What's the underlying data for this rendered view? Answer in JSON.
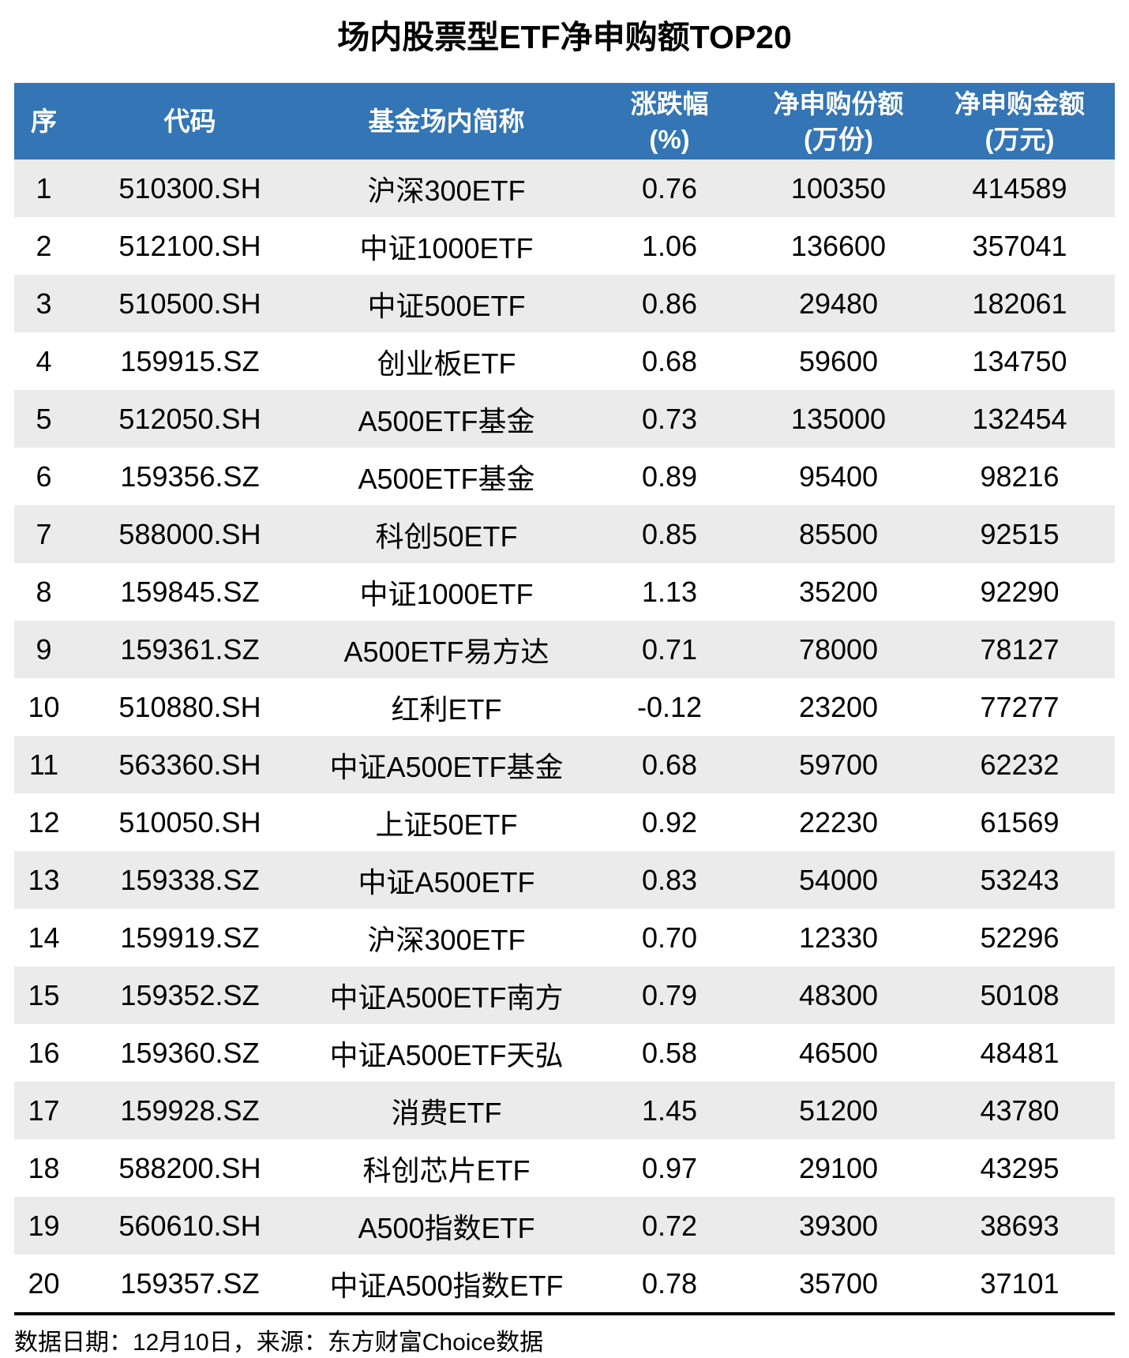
{
  "title": "场内股票型ETF净申购额TOP20",
  "colors": {
    "header_bg": "#3375B5",
    "header_text": "#FFFFFF",
    "row_alt_bg": "#EBEBEB",
    "divider": "#000000"
  },
  "table": {
    "columns": [
      {
        "name": "seq",
        "label": "序",
        "sub": ""
      },
      {
        "name": "code",
        "label": "代码",
        "sub": ""
      },
      {
        "name": "fund-name",
        "label": "基金场内简称",
        "sub": ""
      },
      {
        "name": "change-pct",
        "label": "涨跌幅",
        "sub": "(%)"
      },
      {
        "name": "net-shares",
        "label": "净申购份额",
        "sub": "(万份)"
      },
      {
        "name": "net-amount",
        "label": "净申购金额",
        "sub": "(万元)"
      }
    ]
  },
  "footer_note": "数据日期：12月10日，来源：东方财富Choice数据",
  "chart_data": {
    "type": "table",
    "title": "场内股票型ETF净申购额TOP20",
    "columns": [
      "序",
      "代码",
      "基金场内简称",
      "涨跌幅(%)",
      "净申购份额(万份)",
      "净申购金额(万元)"
    ],
    "rows": [
      [
        "1",
        "510300.SH",
        "沪深300ETF",
        "0.76",
        "100350",
        "414589"
      ],
      [
        "2",
        "512100.SH",
        "中证1000ETF",
        "1.06",
        "136600",
        "357041"
      ],
      [
        "3",
        "510500.SH",
        "中证500ETF",
        "0.86",
        "29480",
        "182061"
      ],
      [
        "4",
        "159915.SZ",
        "创业板ETF",
        "0.68",
        "59600",
        "134750"
      ],
      [
        "5",
        "512050.SH",
        "A500ETF基金",
        "0.73",
        "135000",
        "132454"
      ],
      [
        "6",
        "159356.SZ",
        "A500ETF基金",
        "0.89",
        "95400",
        "98216"
      ],
      [
        "7",
        "588000.SH",
        "科创50ETF",
        "0.85",
        "85500",
        "92515"
      ],
      [
        "8",
        "159845.SZ",
        "中证1000ETF",
        "1.13",
        "35200",
        "92290"
      ],
      [
        "9",
        "159361.SZ",
        "A500ETF易方达",
        "0.71",
        "78000",
        "78127"
      ],
      [
        "10",
        "510880.SH",
        "红利ETF",
        "-0.12",
        "23200",
        "77277"
      ],
      [
        "11",
        "563360.SH",
        "中证A500ETF基金",
        "0.68",
        "59700",
        "62232"
      ],
      [
        "12",
        "510050.SH",
        "上证50ETF",
        "0.92",
        "22230",
        "61569"
      ],
      [
        "13",
        "159338.SZ",
        "中证A500ETF",
        "0.83",
        "54000",
        "53243"
      ],
      [
        "14",
        "159919.SZ",
        "沪深300ETF",
        "0.70",
        "12330",
        "52296"
      ],
      [
        "15",
        "159352.SZ",
        "中证A500ETF南方",
        "0.79",
        "48300",
        "50108"
      ],
      [
        "16",
        "159360.SZ",
        "中证A500ETF天弘",
        "0.58",
        "46500",
        "48481"
      ],
      [
        "17",
        "159928.SZ",
        "消费ETF",
        "1.45",
        "51200",
        "43780"
      ],
      [
        "18",
        "588200.SH",
        "科创芯片ETF",
        "0.97",
        "29100",
        "43295"
      ],
      [
        "19",
        "560610.SH",
        "A500指数ETF",
        "0.72",
        "39300",
        "38693"
      ],
      [
        "20",
        "159357.SZ",
        "中证A500指数ETF",
        "0.78",
        "35700",
        "37101"
      ]
    ],
    "source_note": "数据日期：12月10日，来源：东方财富Choice数据",
    "layout_hints": {
      "zebra_striping": true,
      "header_position": "top",
      "title_position": "top-center"
    }
  }
}
